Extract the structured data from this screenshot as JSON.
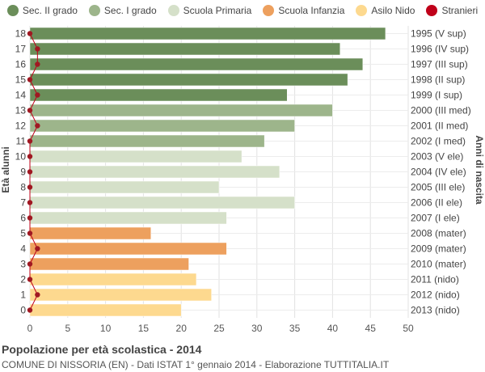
{
  "legend": [
    {
      "label": "Sec. II grado",
      "color": "#6b8e5a"
    },
    {
      "label": "Sec. I grado",
      "color": "#9db58b"
    },
    {
      "label": "Scuola Primaria",
      "color": "#d5e0c9"
    },
    {
      "label": "Scuola Infanzia",
      "color": "#eda05e"
    },
    {
      "label": "Asilo Nido",
      "color": "#fdd98f"
    },
    {
      "label": "Stranieri",
      "color": "#c0001a"
    }
  ],
  "footer": {
    "title": "Popolazione per età scolastica - 2014",
    "subtitle": "COMUNE DI NISSORIA (EN) - Dati ISTAT 1° gennaio 2014 - Elaborazione TUTTITALIA.IT"
  },
  "chart_data": {
    "type": "bar",
    "orientation": "horizontal",
    "ylabel_left": "Età alunni",
    "ylabel_right": "Anni di nascita",
    "xlim": [
      0,
      50
    ],
    "xticks": [
      0,
      5,
      10,
      15,
      20,
      25,
      30,
      35,
      40,
      45,
      50
    ],
    "grid": true,
    "legend_position": "top",
    "rows": [
      {
        "age": "18",
        "birth": "1995 (V sup)",
        "value": 47,
        "stranieri": 0,
        "group": 0
      },
      {
        "age": "17",
        "birth": "1996 (IV sup)",
        "value": 41,
        "stranieri": 1,
        "group": 0
      },
      {
        "age": "16",
        "birth": "1997 (III sup)",
        "value": 44,
        "stranieri": 1,
        "group": 0
      },
      {
        "age": "15",
        "birth": "1998 (II sup)",
        "value": 42,
        "stranieri": 0,
        "group": 0
      },
      {
        "age": "14",
        "birth": "1999 (I sup)",
        "value": 34,
        "stranieri": 1,
        "group": 0
      },
      {
        "age": "13",
        "birth": "2000 (III med)",
        "value": 40,
        "stranieri": 0,
        "group": 1
      },
      {
        "age": "12",
        "birth": "2001 (II med)",
        "value": 35,
        "stranieri": 1,
        "group": 1
      },
      {
        "age": "11",
        "birth": "2002 (I med)",
        "value": 31,
        "stranieri": 0,
        "group": 1
      },
      {
        "age": "10",
        "birth": "2003 (V ele)",
        "value": 28,
        "stranieri": 0,
        "group": 2
      },
      {
        "age": "9",
        "birth": "2004 (IV ele)",
        "value": 33,
        "stranieri": 0,
        "group": 2
      },
      {
        "age": "8",
        "birth": "2005 (III ele)",
        "value": 25,
        "stranieri": 0,
        "group": 2
      },
      {
        "age": "7",
        "birth": "2006 (II ele)",
        "value": 35,
        "stranieri": 0,
        "group": 2
      },
      {
        "age": "6",
        "birth": "2007 (I ele)",
        "value": 26,
        "stranieri": 0,
        "group": 2
      },
      {
        "age": "5",
        "birth": "2008 (mater)",
        "value": 16,
        "stranieri": 0,
        "group": 3
      },
      {
        "age": "4",
        "birth": "2009 (mater)",
        "value": 26,
        "stranieri": 1,
        "group": 3
      },
      {
        "age": "3",
        "birth": "2010 (mater)",
        "value": 21,
        "stranieri": 0,
        "group": 3
      },
      {
        "age": "2",
        "birth": "2011 (nido)",
        "value": 22,
        "stranieri": 0,
        "group": 4
      },
      {
        "age": "1",
        "birth": "2012 (nido)",
        "value": 24,
        "stranieri": 1,
        "group": 4
      },
      {
        "age": "0",
        "birth": "2013 (nido)",
        "value": 20,
        "stranieri": 0,
        "group": 4
      }
    ]
  }
}
